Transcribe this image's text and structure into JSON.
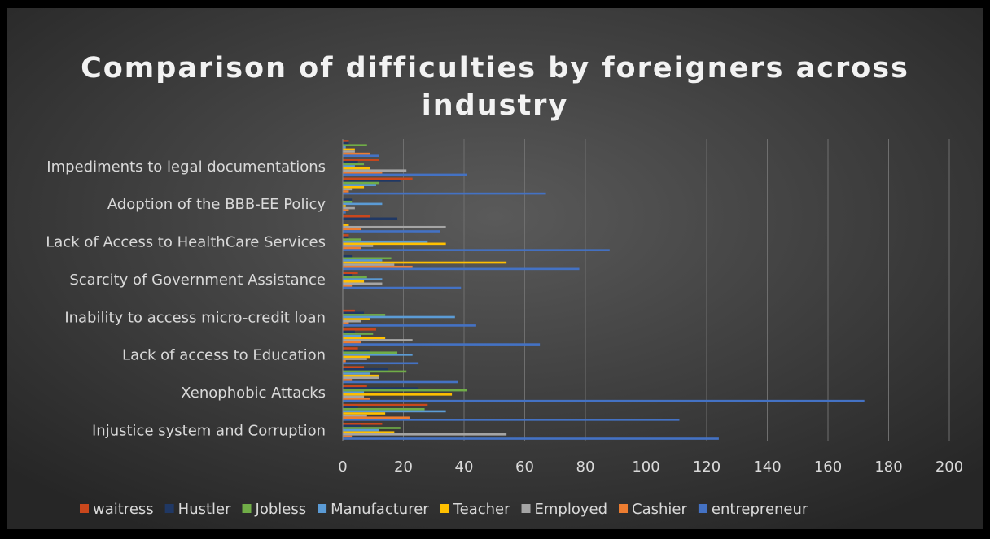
{
  "chart_data": {
    "type": "bar",
    "orientation": "horizontal",
    "title": "Comparison of difficulties by foreigners across industry",
    "categories": [
      "Injustice system and Corruption",
      null,
      "Xenophobic Attacks",
      null,
      "Lack of access to Education",
      null,
      "Inability to access micro-credit loan",
      null,
      "Scarcity of Government Assistance",
      null,
      "Lack of Access to HealthCare Services",
      null,
      "Adoption of the BBB-EE Policy",
      null,
      "Impediments to legal documentations",
      null
    ],
    "series": [
      {
        "name": "waitress",
        "color": "#c9471c",
        "values": [
          13,
          28,
          8,
          7,
          5,
          11,
          4,
          0,
          5,
          0,
          2,
          9,
          0,
          23,
          12,
          2
        ]
      },
      {
        "name": "Hustler",
        "color": "#203864",
        "values": [
          6,
          5,
          25,
          15,
          9,
          4,
          7,
          0,
          3,
          3,
          2,
          18,
          3,
          19,
          5,
          2
        ]
      },
      {
        "name": "Jobless",
        "color": "#70ad47",
        "values": [
          19,
          27,
          41,
          21,
          18,
          10,
          14,
          0,
          8,
          16,
          6,
          0,
          3,
          12,
          7,
          8
        ]
      },
      {
        "name": "Manufacturer",
        "color": "#5b9bd5",
        "values": [
          12,
          34,
          7,
          9,
          23,
          6,
          37,
          0,
          13,
          13,
          28,
          0,
          13,
          11,
          4,
          1
        ]
      },
      {
        "name": "Teacher",
        "color": "#ffc000",
        "values": [
          17,
          14,
          36,
          12,
          9,
          14,
          9,
          0,
          7,
          54,
          34,
          2,
          1,
          7,
          9,
          4
        ]
      },
      {
        "name": "Employed",
        "color": "#a5a5a5",
        "values": [
          54,
          8,
          7,
          12,
          8,
          23,
          6,
          0,
          13,
          17,
          10,
          34,
          4,
          3,
          21,
          4
        ]
      },
      {
        "name": "Cashier",
        "color": "#ed7d31",
        "values": [
          3,
          22,
          9,
          3,
          1,
          6,
          2,
          0,
          3,
          23,
          6,
          6,
          2,
          2,
          13,
          9
        ]
      },
      {
        "name": "entrepreneur",
        "color": "#4472c4",
        "values": [
          124,
          111,
          172,
          38,
          25,
          65,
          44,
          0,
          39,
          78,
          88,
          32,
          1,
          67,
          41,
          12
        ]
      }
    ],
    "xlim": [
      0,
      200
    ],
    "xticks": [
      0,
      20,
      40,
      60,
      80,
      100,
      120,
      140,
      160,
      180,
      200
    ],
    "grid": true,
    "legend": "bottom"
  }
}
